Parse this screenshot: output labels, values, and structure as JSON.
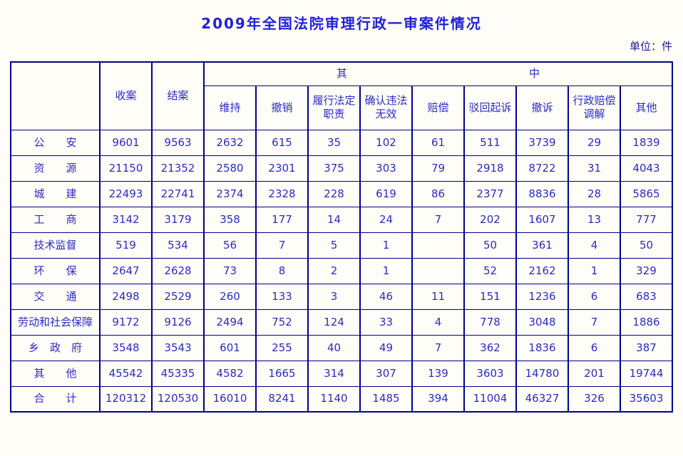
{
  "colors": {
    "title_blue": "#2121d6",
    "table_text_blue": "#2b2bc4",
    "border_navy": "#000090",
    "page_background": "#fffdf7"
  },
  "chart_data": {
    "type": "table",
    "title": "2009年全国法院审理行政一审案件情况",
    "unit": "单位：件",
    "corner_label": "",
    "span_header": "其　　　　　　　　　　　　　　　　　中",
    "span_header_text": "其中",
    "columns": [
      "收案",
      "结案",
      "维持",
      "撤销",
      "履行法定职责",
      "确认违法无效",
      "赔偿",
      "驳回起诉",
      "撤诉",
      "行政赔偿调解",
      "其他"
    ],
    "rows": [
      {
        "label": "公　　安",
        "values": [
          "9601",
          "9563",
          "2632",
          "615",
          "35",
          "102",
          "61",
          "511",
          "3739",
          "29",
          "1839"
        ]
      },
      {
        "label": "资　　源",
        "values": [
          "21150",
          "21352",
          "2580",
          "2301",
          "375",
          "303",
          "79",
          "2918",
          "8722",
          "31",
          "4043"
        ]
      },
      {
        "label": "城　　建",
        "values": [
          "22493",
          "22741",
          "2374",
          "2328",
          "228",
          "619",
          "86",
          "2377",
          "8836",
          "28",
          "5865"
        ]
      },
      {
        "label": "工　　商",
        "values": [
          "3142",
          "3179",
          "358",
          "177",
          "14",
          "24",
          "7",
          "202",
          "1607",
          "13",
          "777"
        ]
      },
      {
        "label": "技术监督",
        "values": [
          "519",
          "534",
          "56",
          "7",
          "5",
          "1",
          "",
          "50",
          "361",
          "4",
          "50"
        ]
      },
      {
        "label": "环　　保",
        "values": [
          "2647",
          "2628",
          "73",
          "8",
          "2",
          "1",
          "",
          "52",
          "2162",
          "1",
          "329"
        ]
      },
      {
        "label": "交　　通",
        "values": [
          "2498",
          "2529",
          "260",
          "133",
          "3",
          "46",
          "11",
          "151",
          "1236",
          "6",
          "683"
        ]
      },
      {
        "label": "劳动和社会保障",
        "values": [
          "9172",
          "9126",
          "2494",
          "752",
          "124",
          "33",
          "4",
          "778",
          "3048",
          "7",
          "1886"
        ]
      },
      {
        "label": "乡　政　府",
        "values": [
          "3548",
          "3543",
          "601",
          "255",
          "40",
          "49",
          "7",
          "362",
          "1836",
          "6",
          "387"
        ]
      },
      {
        "label": "其　　他",
        "values": [
          "45542",
          "45335",
          "4582",
          "1665",
          "314",
          "307",
          "139",
          "3603",
          "14780",
          "201",
          "19744"
        ]
      },
      {
        "label": "合　　计",
        "values": [
          "120312",
          "120530",
          "16010",
          "8241",
          "1140",
          "1485",
          "394",
          "11004",
          "46327",
          "326",
          "35603"
        ]
      }
    ]
  }
}
